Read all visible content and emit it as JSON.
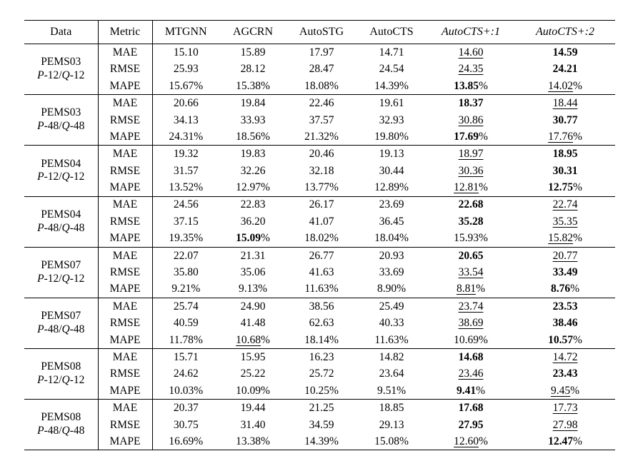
{
  "table": {
    "columns": [
      "Data",
      "Metric",
      "MTGNN",
      "AGCRN",
      "AutoSTG",
      "AutoCTS",
      "AutoCTS+:1",
      "AutoCTS+:2"
    ],
    "emphasis_legend": {
      "b": "bold-best",
      "u": "underline-second-best",
      "n": "plain"
    },
    "groups": [
      {
        "dataset": "PEMS03",
        "setting": "P-12/Q-12",
        "rows": [
          {
            "metric": "MAE",
            "values": [
              "15.10",
              "15.89",
              "17.97",
              "14.71",
              "14.60",
              "14.59"
            ],
            "styles": [
              "n",
              "n",
              "n",
              "n",
              "u",
              "b"
            ]
          },
          {
            "metric": "RMSE",
            "values": [
              "25.93",
              "28.12",
              "28.47",
              "24.54",
              "24.35",
              "24.21"
            ],
            "styles": [
              "n",
              "n",
              "n",
              "n",
              "u",
              "b"
            ]
          },
          {
            "metric": "MAPE",
            "values": [
              "15.67%",
              "15.38%",
              "18.08%",
              "14.39%",
              "13.85%",
              "14.02%"
            ],
            "styles": [
              "n",
              "n",
              "n",
              "n",
              "b",
              "u"
            ]
          }
        ]
      },
      {
        "dataset": "PEMS03",
        "setting": "P-48/Q-48",
        "rows": [
          {
            "metric": "MAE",
            "values": [
              "20.66",
              "19.84",
              "22.46",
              "19.61",
              "18.37",
              "18.44"
            ],
            "styles": [
              "n",
              "n",
              "n",
              "n",
              "b",
              "u"
            ]
          },
          {
            "metric": "RMSE",
            "values": [
              "34.13",
              "33.93",
              "37.57",
              "32.93",
              "30.86",
              "30.77"
            ],
            "styles": [
              "n",
              "n",
              "n",
              "n",
              "u",
              "b"
            ]
          },
          {
            "metric": "MAPE",
            "values": [
              "24.31%",
              "18.56%",
              "21.32%",
              "19.80%",
              "17.69%",
              "17.76%"
            ],
            "styles": [
              "n",
              "n",
              "n",
              "n",
              "b",
              "u"
            ]
          }
        ]
      },
      {
        "dataset": "PEMS04",
        "setting": "P-12/Q-12",
        "rows": [
          {
            "metric": "MAE",
            "values": [
              "19.32",
              "19.83",
              "20.46",
              "19.13",
              "18.97",
              "18.95"
            ],
            "styles": [
              "n",
              "n",
              "n",
              "n",
              "u",
              "b"
            ]
          },
          {
            "metric": "RMSE",
            "values": [
              "31.57",
              "32.26",
              "32.18",
              "30.44",
              "30.36",
              "30.31"
            ],
            "styles": [
              "n",
              "n",
              "n",
              "n",
              "u",
              "b"
            ]
          },
          {
            "metric": "MAPE",
            "values": [
              "13.52%",
              "12.97%",
              "13.77%",
              "12.89%",
              "12.81%",
              "12.75%"
            ],
            "styles": [
              "n",
              "n",
              "n",
              "n",
              "u",
              "b"
            ]
          }
        ]
      },
      {
        "dataset": "PEMS04",
        "setting": "P-48/Q-48",
        "rows": [
          {
            "metric": "MAE",
            "values": [
              "24.56",
              "22.83",
              "26.17",
              "23.69",
              "22.68",
              "22.74"
            ],
            "styles": [
              "n",
              "n",
              "n",
              "n",
              "b",
              "u"
            ]
          },
          {
            "metric": "RMSE",
            "values": [
              "37.15",
              "36.20",
              "41.07",
              "36.45",
              "35.28",
              "35.35"
            ],
            "styles": [
              "n",
              "n",
              "n",
              "n",
              "b",
              "u"
            ]
          },
          {
            "metric": "MAPE",
            "values": [
              "19.35%",
              "15.09%",
              "18.02%",
              "18.04%",
              "15.93%",
              "15.82%"
            ],
            "styles": [
              "n",
              "b",
              "n",
              "n",
              "n",
              "u"
            ]
          }
        ]
      },
      {
        "dataset": "PEMS07",
        "setting": "P-12/Q-12",
        "rows": [
          {
            "metric": "MAE",
            "values": [
              "22.07",
              "21.31",
              "26.77",
              "20.93",
              "20.65",
              "20.77"
            ],
            "styles": [
              "n",
              "n",
              "n",
              "n",
              "b",
              "u"
            ]
          },
          {
            "metric": "RMSE",
            "values": [
              "35.80",
              "35.06",
              "41.63",
              "33.69",
              "33.54",
              "33.49"
            ],
            "styles": [
              "n",
              "n",
              "n",
              "n",
              "u",
              "b"
            ]
          },
          {
            "metric": "MAPE",
            "values": [
              "9.21%",
              "9.13%",
              "11.63%",
              "8.90%",
              "8.81%",
              "8.76%"
            ],
            "styles": [
              "n",
              "n",
              "n",
              "n",
              "u",
              "b"
            ]
          }
        ]
      },
      {
        "dataset": "PEMS07",
        "setting": "P-48/Q-48",
        "rows": [
          {
            "metric": "MAE",
            "values": [
              "25.74",
              "24.90",
              "38.56",
              "25.49",
              "23.74",
              "23.53"
            ],
            "styles": [
              "n",
              "n",
              "n",
              "n",
              "u",
              "b"
            ]
          },
          {
            "metric": "RMSE",
            "values": [
              "40.59",
              "41.48",
              "62.63",
              "40.33",
              "38.69",
              "38.46"
            ],
            "styles": [
              "n",
              "n",
              "n",
              "n",
              "u",
              "b"
            ]
          },
          {
            "metric": "MAPE",
            "values": [
              "11.78%",
              "10.68%",
              "18.14%",
              "11.63%",
              "10.69%",
              "10.57%"
            ],
            "styles": [
              "n",
              "u",
              "n",
              "n",
              "n",
              "b"
            ]
          }
        ]
      },
      {
        "dataset": "PEMS08",
        "setting": "P-12/Q-12",
        "rows": [
          {
            "metric": "MAE",
            "values": [
              "15.71",
              "15.95",
              "16.23",
              "14.82",
              "14.68",
              "14.72"
            ],
            "styles": [
              "n",
              "n",
              "n",
              "n",
              "b",
              "u"
            ]
          },
          {
            "metric": "RMSE",
            "values": [
              "24.62",
              "25.22",
              "25.72",
              "23.64",
              "23.46",
              "23.43"
            ],
            "styles": [
              "n",
              "n",
              "n",
              "n",
              "u",
              "b"
            ]
          },
          {
            "metric": "MAPE",
            "values": [
              "10.03%",
              "10.09%",
              "10.25%",
              "9.51%",
              "9.41%",
              "9.45%"
            ],
            "styles": [
              "n",
              "n",
              "n",
              "n",
              "b",
              "u"
            ]
          }
        ]
      },
      {
        "dataset": "PEMS08",
        "setting": "P-48/Q-48",
        "rows": [
          {
            "metric": "MAE",
            "values": [
              "20.37",
              "19.44",
              "21.25",
              "18.85",
              "17.68",
              "17.73"
            ],
            "styles": [
              "n",
              "n",
              "n",
              "n",
              "b",
              "u"
            ]
          },
          {
            "metric": "RMSE",
            "values": [
              "30.75",
              "31.40",
              "34.59",
              "29.13",
              "27.95",
              "27.98"
            ],
            "styles": [
              "n",
              "n",
              "n",
              "n",
              "b",
              "u"
            ]
          },
          {
            "metric": "MAPE",
            "values": [
              "16.69%",
              "13.38%",
              "14.39%",
              "15.08%",
              "12.60%",
              "12.47%"
            ],
            "styles": [
              "n",
              "n",
              "n",
              "n",
              "u",
              "b"
            ]
          }
        ]
      }
    ]
  }
}
